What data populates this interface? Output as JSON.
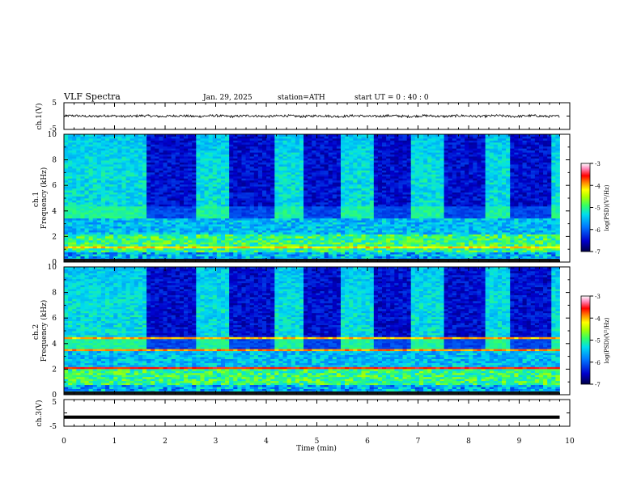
{
  "header": {
    "title": "VLF  Spectra",
    "date": "Jan. 29, 2025",
    "station": "station=ATH",
    "start": "start  UT  =   0 : 40 : 0"
  },
  "colors": {
    "ink": "#000000",
    "colormap": [
      "#000066",
      "#0000cc",
      "#0066ff",
      "#00ccff",
      "#33ff99",
      "#99ff00",
      "#ffff00",
      "#ff9900",
      "#ff0000",
      "#ff99cc",
      "#ffffff"
    ]
  },
  "chart_data": [
    {
      "type": "line",
      "name": "ch1-waveform",
      "ylabel": "ch.1(V)",
      "ylim": [
        -5,
        5
      ],
      "yticks": [
        "5",
        "-5"
      ],
      "xlim": [
        0,
        10
      ],
      "trace_level_v": 0.0,
      "trace_amplitude_v": 0.9,
      "trace_end_min": 9.8
    },
    {
      "type": "heatmap",
      "name": "ch1-spectrogram",
      "ylabel": "ch.1\nFrequency  (kHz)",
      "ylim": [
        0,
        10
      ],
      "yticks": [
        "0",
        "2",
        "4",
        "6",
        "8",
        "10"
      ],
      "xlim": [
        0,
        10
      ],
      "data_end_min": 9.8,
      "colorbar": {
        "label": "log(PSD)(V²/Hz)",
        "range": [
          -7,
          -3
        ],
        "ticks": [
          "-3",
          "-4",
          "-5",
          "-6",
          "-7"
        ]
      },
      "quiet_intervals_min": [
        [
          1.6,
          2.65
        ],
        [
          3.25,
          4.15
        ],
        [
          4.7,
          5.45
        ],
        [
          6.1,
          6.85
        ],
        [
          7.5,
          8.3
        ],
        [
          8.85,
          9.6
        ]
      ]
    },
    {
      "type": "heatmap",
      "name": "ch2-spectrogram",
      "ylabel": "ch.2\nFrequency  (kHz)",
      "ylim": [
        0,
        10
      ],
      "yticks": [
        "0",
        "2",
        "4",
        "6",
        "8",
        "10"
      ],
      "xlim": [
        0,
        10
      ],
      "data_end_min": 9.8,
      "colorbar": {
        "label": "log(PSD)(V²/Hz)",
        "range": [
          -7,
          -3
        ],
        "ticks": [
          "-3",
          "-4",
          "-5",
          "-6",
          "-7"
        ]
      },
      "quiet_intervals_min": [
        [
          1.6,
          2.65
        ],
        [
          3.25,
          4.15
        ],
        [
          4.7,
          5.45
        ],
        [
          6.1,
          6.85
        ],
        [
          7.5,
          8.3
        ],
        [
          8.85,
          9.6
        ]
      ]
    },
    {
      "type": "line",
      "name": "ch3-waveform",
      "ylabel": "ch.3(V)",
      "ylim": [
        -5,
        5
      ],
      "yticks": [
        "5",
        "-5"
      ],
      "xlim": [
        0,
        10
      ],
      "trace_level_v": -1.6,
      "trace_end_min": 9.8
    }
  ],
  "xaxis": {
    "label": "Time  (min)",
    "ticks": [
      "0",
      "1",
      "2",
      "3",
      "4",
      "5",
      "6",
      "7",
      "8",
      "9",
      "10"
    ]
  }
}
